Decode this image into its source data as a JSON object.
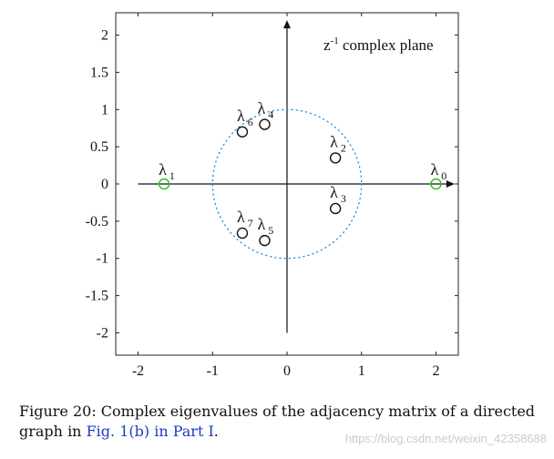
{
  "chart_data": {
    "type": "scatter",
    "title": "",
    "annotation": {
      "base": "z",
      "sup": "-1",
      "rest": " complex plane"
    },
    "xlabel": "",
    "ylabel": "",
    "xlim": [
      -2.3,
      2.3
    ],
    "ylim": [
      -2.3,
      2.3
    ],
    "xticks": [
      -2,
      -1,
      0,
      1,
      2
    ],
    "yticks": [
      2,
      1.5,
      1,
      0.5,
      0,
      -0.5,
      -1,
      -1.5,
      -2
    ],
    "xtick_labels": [
      "-2",
      "-1",
      "0",
      "1",
      "2"
    ],
    "ytick_labels": [
      "2",
      "1.5",
      "1",
      "0.5",
      "0",
      "-0.5",
      "-1",
      "-1.5",
      "-2"
    ],
    "grid": false,
    "unit_circle": {
      "radius": 1,
      "style": "dotted",
      "color": "#2a8fd8"
    },
    "axes_arrows": {
      "x_end": 2.25,
      "x_start": -2,
      "y_end": 2.2,
      "y_start": -2
    },
    "points": [
      {
        "symbol": "λ",
        "sub": "0",
        "x": 2.0,
        "y": 0.0,
        "color": "#2ebd2e"
      },
      {
        "symbol": "λ",
        "sub": "1",
        "x": -1.65,
        "y": 0.0,
        "color": "#2ebd2e"
      },
      {
        "symbol": "λ",
        "sub": "2",
        "x": 0.65,
        "y": 0.35,
        "color": "#111111"
      },
      {
        "symbol": "λ",
        "sub": "3",
        "x": 0.65,
        "y": -0.33,
        "color": "#111111"
      },
      {
        "symbol": "λ",
        "sub": "4",
        "x": -0.3,
        "y": 0.8,
        "color": "#111111"
      },
      {
        "symbol": "λ",
        "sub": "5",
        "x": -0.3,
        "y": -0.76,
        "color": "#111111"
      },
      {
        "symbol": "λ",
        "sub": "6",
        "x": -0.6,
        "y": 0.7,
        "color": "#111111"
      },
      {
        "symbol": "λ",
        "sub": "7",
        "x": -0.6,
        "y": -0.66,
        "color": "#111111"
      }
    ]
  },
  "caption": {
    "prefix": "Figure 20:  Complex eigenvalues of the adjacency matrix of a directed",
    "line2_start": "graph in ",
    "ref": "Fig. 1(b) in Part I",
    "end": "."
  },
  "watermark": "https://blog.csdn.net/weixin_42358688"
}
